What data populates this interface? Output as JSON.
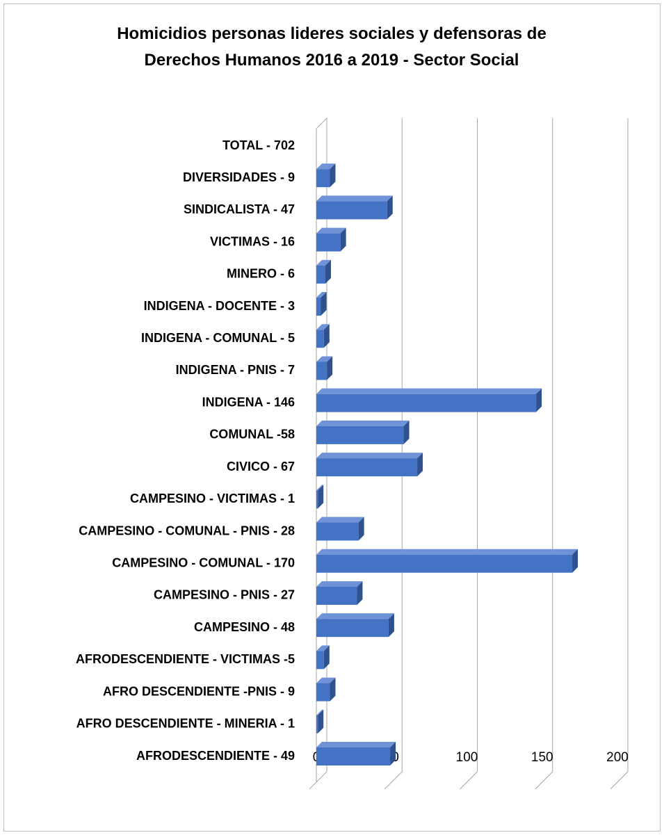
{
  "chart_data": {
    "type": "bar",
    "orientation": "horizontal",
    "three_d": true,
    "title": "Homicidios personas lideres sociales y defensoras de Derechos Humanos 2016  a 2019 - Sector Social",
    "categories": [
      "TOTAL - 702",
      "DIVERSIDADES - 9",
      "SINDICALISTA - 47",
      "VICTIMAS - 16",
      "MINERO - 6",
      "INDIGENA - DOCENTE - 3",
      "INDIGENA - COMUNAL - 5",
      "INDIGENA - PNIS - 7",
      "INDIGENA - 146",
      "COMUNAL -58",
      "CIVICO - 67",
      "CAMPESINO - VICTIMAS - 1",
      "CAMPESINO - COMUNAL - PNIS - 28",
      "CAMPESINO - COMUNAL - 170",
      "CAMPESINO - PNIS - 27",
      "CAMPESINO - 48",
      "AFRODESCENDIENTE - VICTIMAS -5",
      "AFRO DESCENDIENTE -PNIS - 9",
      "AFRO DESCENDIENTE - MINERIA - 1",
      "AFRODESCENDIENTE - 49"
    ],
    "values": [
      null,
      9,
      47,
      16,
      6,
      3,
      5,
      7,
      146,
      58,
      67,
      1,
      28,
      170,
      27,
      48,
      5,
      9,
      1,
      49
    ],
    "color": "#4472c4",
    "xlim": [
      0,
      200
    ],
    "xticks": [
      0,
      50,
      100,
      150,
      200
    ],
    "grid": true
  }
}
